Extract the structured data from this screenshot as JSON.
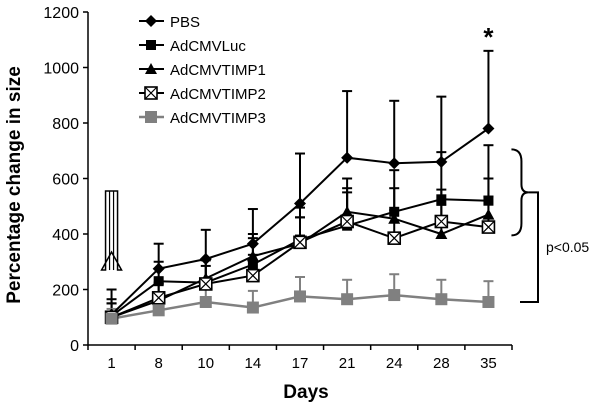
{
  "chart_data": {
    "type": "line",
    "xlabel": "Days",
    "ylabel": "Percentage change in size",
    "categories": [
      "1",
      "8",
      "10",
      "14",
      "17",
      "21",
      "24",
      "28",
      "35"
    ],
    "ylim": [
      0,
      1200
    ],
    "yticks": [
      0,
      200,
      400,
      600,
      800,
      1000,
      1200
    ],
    "grid": false,
    "legend_position": "top-left",
    "series": [
      {
        "name": "PBS",
        "marker": "diamond",
        "color": "#000000",
        "values": [
          110,
          275,
          310,
          365,
          510,
          675,
          655,
          660,
          780
        ],
        "error": [
          90,
          90,
          105,
          125,
          180,
          240,
          225,
          235,
          280
        ]
      },
      {
        "name": "AdCMVLuc",
        "marker": "square",
        "color": "#000000",
        "values": [
          105,
          230,
          225,
          290,
          380,
          430,
          480,
          525,
          520
        ],
        "error": [
          60,
          70,
          80,
          95,
          115,
          135,
          150,
          170,
          200
        ]
      },
      {
        "name": "AdCMVTIMP1",
        "marker": "triangle",
        "color": "#000000",
        "values": [
          100,
          160,
          240,
          320,
          365,
          480,
          455,
          400,
          470
        ],
        "error": [
          50,
          60,
          70,
          80,
          95,
          120,
          110,
          105,
          130
        ]
      },
      {
        "name": "AdCMVTIMP2",
        "marker": "square-x",
        "color": "#000000",
        "values": [
          100,
          170,
          220,
          250,
          370,
          445,
          385,
          445,
          425
        ],
        "error": [
          50,
          55,
          65,
          75,
          90,
          105,
          100,
          115,
          110
        ]
      },
      {
        "name": "AdCMVTIMP3",
        "marker": "gray-square",
        "color": "#808080",
        "values": [
          95,
          125,
          155,
          135,
          175,
          165,
          180,
          165,
          155
        ],
        "error": [
          35,
          45,
          55,
          60,
          70,
          70,
          75,
          70,
          75
        ]
      }
    ],
    "annotations": {
      "significance_star": "*",
      "p_value": "p<0.05"
    }
  }
}
